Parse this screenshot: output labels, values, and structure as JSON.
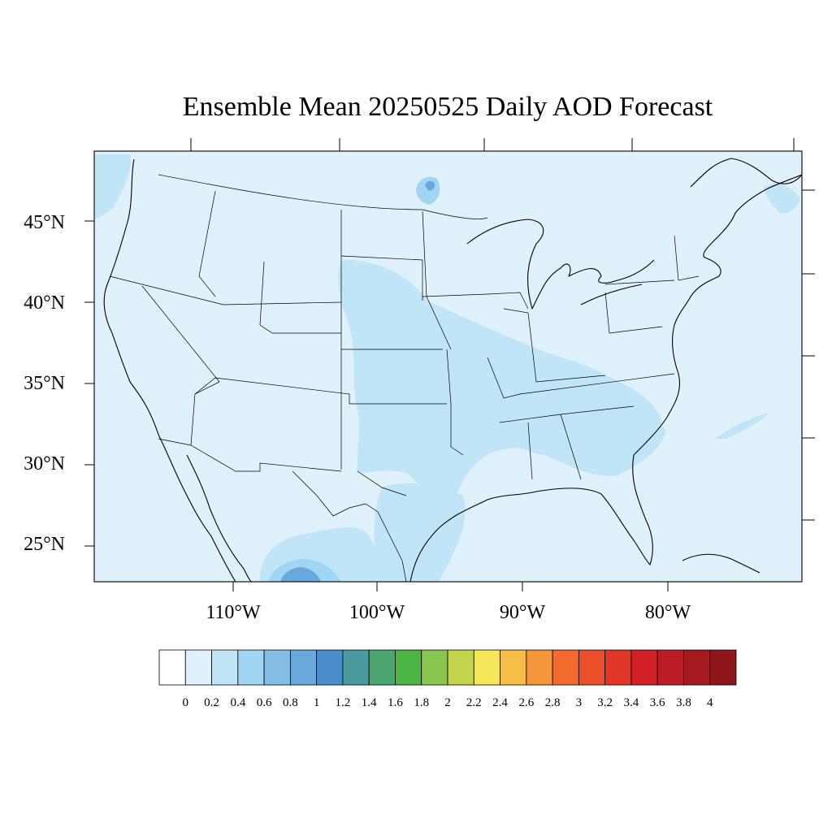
{
  "title": "Ensemble Mean 20250525 Daily AOD Forecast",
  "colors": {
    "background": "#dff1fa",
    "colorbar": [
      "#ffffff",
      "#dff1fa",
      "#bfe5f7",
      "#a0d6f2",
      "#84bde5",
      "#68a8dc",
      "#4b8dcb",
      "#4a9a9f",
      "#4aa56f",
      "#4db446",
      "#88c64f",
      "#c2d54d",
      "#f6e65a",
      "#f6be46",
      "#f6963c",
      "#f26a2e",
      "#e94f2a",
      "#e03626",
      "#d21f28",
      "#bb1c25",
      "#a41a1f",
      "#8e161b"
    ]
  },
  "map": {
    "lat_labels": [
      "45°N",
      "40°N",
      "35°N",
      "30°N",
      "25°N"
    ],
    "lon_labels": [
      "110°W",
      "100°W",
      "90°W",
      "80°W"
    ]
  },
  "colorbar": {
    "labels": [
      "0",
      "0.2",
      "0.4",
      "0.6",
      "0.8",
      "1",
      "1.2",
      "1.4",
      "1.6",
      "1.8",
      "2",
      "2.2",
      "2.4",
      "2.6",
      "2.8",
      "3",
      "3.2",
      "3.4",
      "3.6",
      "3.8",
      "4"
    ]
  },
  "field": {
    "description_units": "AOD",
    "hotspots": [
      {
        "region": "central-plains",
        "level": 0.2
      },
      {
        "region": "mississippi-valley",
        "level": 0.2
      },
      {
        "region": "southeast",
        "level": 0.2
      },
      {
        "region": "northern-mexico",
        "level": 0.4
      },
      {
        "region": "chihuahua-core",
        "level": 0.6
      },
      {
        "region": "lake-of-the-woods",
        "level": 0.6
      }
    ]
  }
}
